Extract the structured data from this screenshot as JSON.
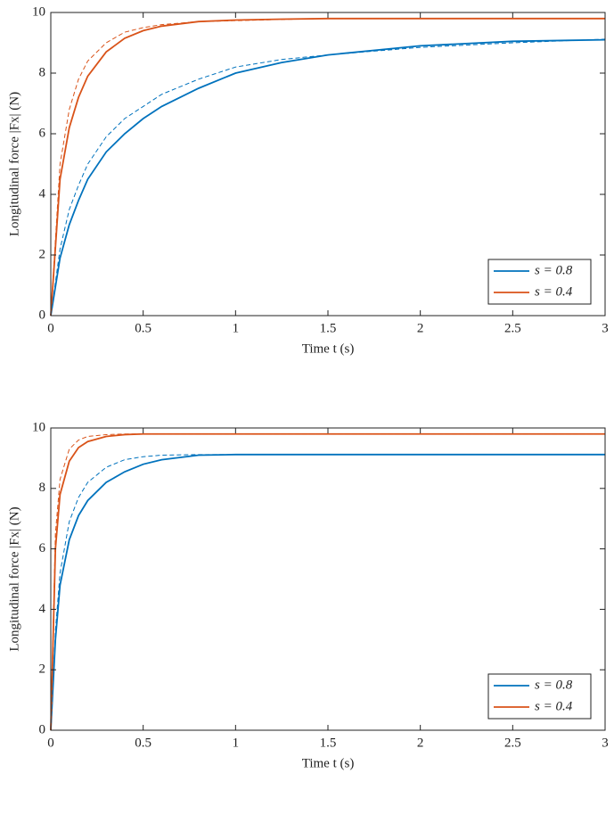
{
  "chart_data": [
    {
      "type": "line",
      "xlabel": "Time t (s)",
      "ylabel": "Longitudinal force |Fx| (N)",
      "x": [
        0,
        0.05,
        0.1,
        0.15,
        0.2,
        0.3,
        0.4,
        0.5,
        0.6,
        0.8,
        1,
        1.25,
        1.5,
        2,
        2.5,
        3
      ],
      "series": [
        {
          "name": "s = 0.8",
          "color": "#0072bd",
          "values": [
            0,
            1.9,
            3.0,
            3.8,
            4.5,
            5.4,
            6.0,
            6.5,
            6.9,
            7.5,
            8.0,
            8.35,
            8.6,
            8.9,
            9.05,
            9.1
          ]
        },
        {
          "name": "s = 0.4",
          "color": "#d95319",
          "values": [
            0,
            4.5,
            6.2,
            7.2,
            7.9,
            8.7,
            9.15,
            9.4,
            9.55,
            9.7,
            9.75,
            9.78,
            9.8,
            9.8,
            9.8,
            9.8
          ]
        },
        {
          "color": "#0072bd",
          "dash": true,
          "values": [
            0,
            2.2,
            3.5,
            4.3,
            5.0,
            5.9,
            6.5,
            6.9,
            7.3,
            7.8,
            8.2,
            8.45,
            8.6,
            8.85,
            9.0,
            9.12
          ]
        },
        {
          "color": "#d95319",
          "dash": true,
          "values": [
            0,
            5.0,
            6.8,
            7.8,
            8.4,
            9.0,
            9.35,
            9.5,
            9.6,
            9.7,
            9.73,
            9.77,
            9.8,
            9.8,
            9.8,
            9.8
          ]
        }
      ],
      "xlim": [
        0,
        3
      ],
      "xticks": [
        0,
        0.5,
        1,
        1.5,
        2,
        2.5,
        3
      ],
      "ylim": [
        0,
        10
      ],
      "yticks": [
        0,
        2,
        4,
        6,
        8,
        10
      ],
      "legend": "lower right"
    },
    {
      "type": "line",
      "xlabel": "Time t (s)",
      "ylabel": "Longitudinal force |Fx| (N)",
      "x": [
        0,
        0.025,
        0.05,
        0.1,
        0.15,
        0.2,
        0.3,
        0.4,
        0.5,
        0.6,
        0.8,
        1,
        1.5,
        2,
        2.5,
        3
      ],
      "series": [
        {
          "name": "s = 0.8",
          "color": "#0072bd",
          "values": [
            0,
            3.0,
            4.8,
            6.3,
            7.1,
            7.6,
            8.2,
            8.55,
            8.8,
            8.95,
            9.1,
            9.12,
            9.12,
            9.12,
            9.12,
            9.12
          ]
        },
        {
          "name": "s = 0.4",
          "color": "#d95319",
          "values": [
            0,
            6.0,
            7.8,
            8.9,
            9.35,
            9.55,
            9.72,
            9.78,
            9.8,
            9.8,
            9.8,
            9.8,
            9.8,
            9.8,
            9.8,
            9.8
          ]
        },
        {
          "color": "#0072bd",
          "dash": true,
          "values": [
            0,
            3.3,
            5.2,
            6.9,
            7.7,
            8.2,
            8.7,
            8.95,
            9.05,
            9.1,
            9.12,
            9.12,
            9.12,
            9.12,
            9.12,
            9.12
          ]
        },
        {
          "color": "#d95319",
          "dash": true,
          "values": [
            0,
            6.5,
            8.3,
            9.3,
            9.6,
            9.72,
            9.78,
            9.8,
            9.8,
            9.8,
            9.8,
            9.8,
            9.8,
            9.8,
            9.8,
            9.8
          ]
        }
      ],
      "xlim": [
        0,
        3
      ],
      "xticks": [
        0,
        0.5,
        1,
        1.5,
        2,
        2.5,
        3
      ],
      "ylim": [
        0,
        10
      ],
      "yticks": [
        0,
        2,
        4,
        6,
        8,
        10
      ],
      "legend": "lower right"
    }
  ]
}
